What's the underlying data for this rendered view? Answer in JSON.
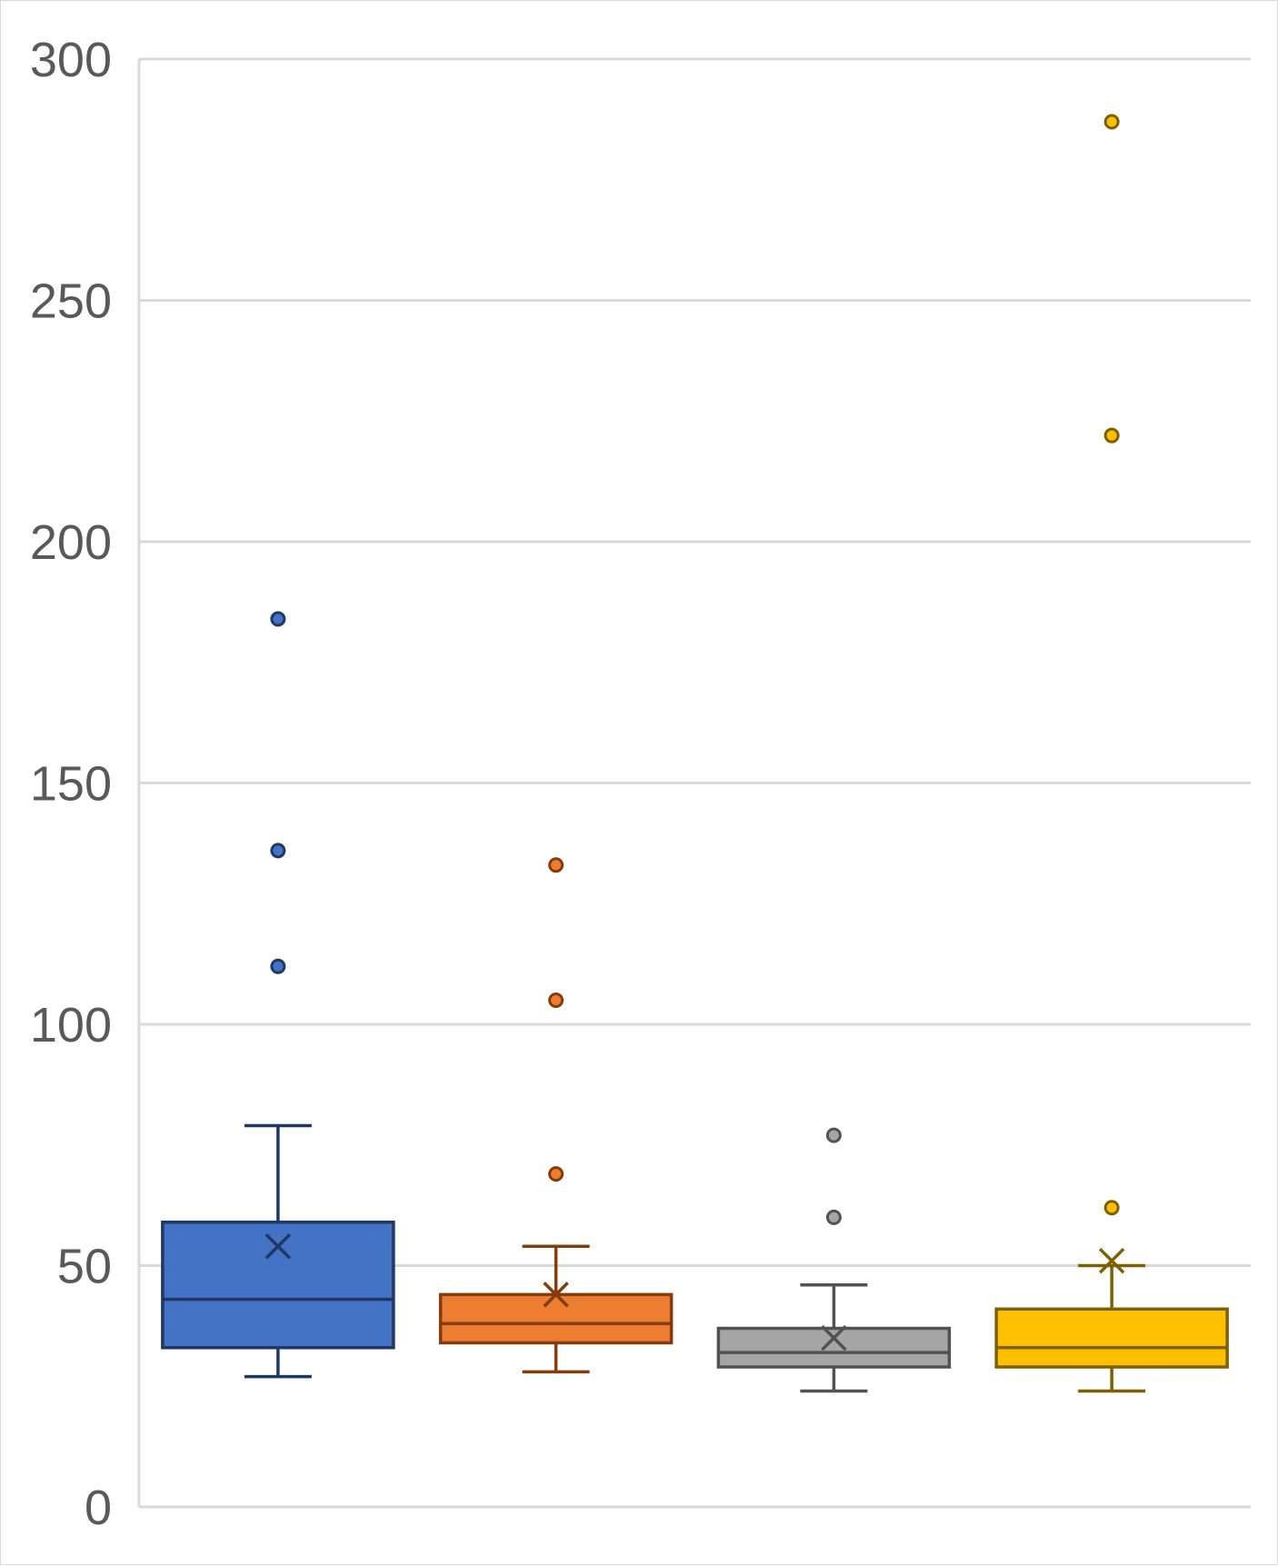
{
  "chart_data": {
    "type": "box",
    "title": "",
    "xlabel": "",
    "ylabel": "",
    "ylim": [
      0,
      300
    ],
    "yticks": [
      0,
      50,
      100,
      150,
      200,
      250,
      300
    ],
    "grid": true,
    "legend": "none",
    "series": [
      {
        "color": "#4472C4",
        "stroke": "#1F3864",
        "min": 27,
        "q1": 33,
        "median": 43,
        "q3": 59,
        "max": 79,
        "mean": 54,
        "outliers": [
          112,
          136,
          184
        ]
      },
      {
        "color": "#ED7D31",
        "stroke": "#843C0C",
        "min": 28,
        "q1": 34,
        "median": 38,
        "q3": 44,
        "max": 54,
        "mean": 44,
        "outliers": [
          69,
          105,
          133
        ]
      },
      {
        "color": "#A5A5A5",
        "stroke": "#525252",
        "min": 24,
        "q1": 29,
        "median": 32,
        "q3": 37,
        "max": 46,
        "mean": 35,
        "outliers": [
          60,
          77
        ]
      },
      {
        "color": "#FFC000",
        "stroke": "#7F6000",
        "min": 24,
        "q1": 29,
        "median": 33,
        "q3": 41,
        "max": 50,
        "mean": 51,
        "outliers": [
          62,
          222,
          287
        ]
      }
    ]
  }
}
